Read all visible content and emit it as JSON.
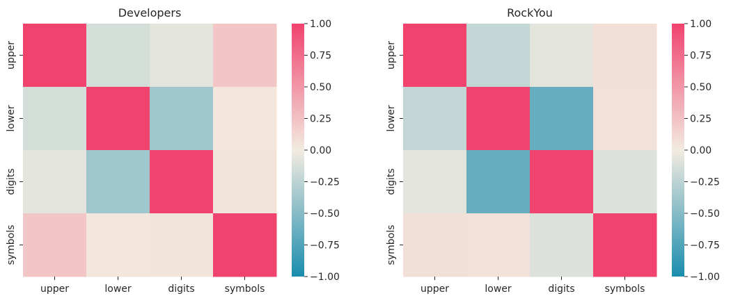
{
  "chart_data": [
    {
      "type": "heatmap",
      "title": "Developers",
      "rows": [
        "upper",
        "lower",
        "digits",
        "symbols"
      ],
      "cols": [
        "upper",
        "lower",
        "digits",
        "symbols"
      ],
      "values": [
        [
          1.0,
          -0.14,
          -0.07,
          0.22
        ],
        [
          -0.14,
          1.0,
          -0.38,
          0.03
        ],
        [
          -0.07,
          -0.38,
          1.0,
          0.04
        ],
        [
          0.22,
          0.03,
          0.04,
          1.0
        ]
      ],
      "vmin": -1.0,
      "vmax": 1.0,
      "colorbar_ticks": [
        "1.00",
        "0.75",
        "0.50",
        "0.25",
        "0.00",
        "−0.25",
        "−0.50",
        "−0.75",
        "−1.00"
      ]
    },
    {
      "type": "heatmap",
      "title": "RockYou",
      "rows": [
        "upper",
        "lower",
        "digits",
        "symbols"
      ],
      "cols": [
        "upper",
        "lower",
        "digits",
        "symbols"
      ],
      "values": [
        [
          1.0,
          -0.22,
          -0.07,
          0.07
        ],
        [
          -0.22,
          1.0,
          -0.65,
          0.06
        ],
        [
          -0.07,
          -0.65,
          1.0,
          -0.1
        ],
        [
          0.07,
          0.06,
          -0.1,
          1.0
        ]
      ],
      "vmin": -1.0,
      "vmax": 1.0,
      "colorbar_ticks": [
        "1.00",
        "0.75",
        "0.50",
        "0.25",
        "0.00",
        "−0.25",
        "−0.50",
        "−0.75",
        "−1.00"
      ]
    }
  ],
  "colors": {
    "negative_end": "#1a8cad",
    "center": "#f2ebe0",
    "positive_end": "#f0436e"
  }
}
